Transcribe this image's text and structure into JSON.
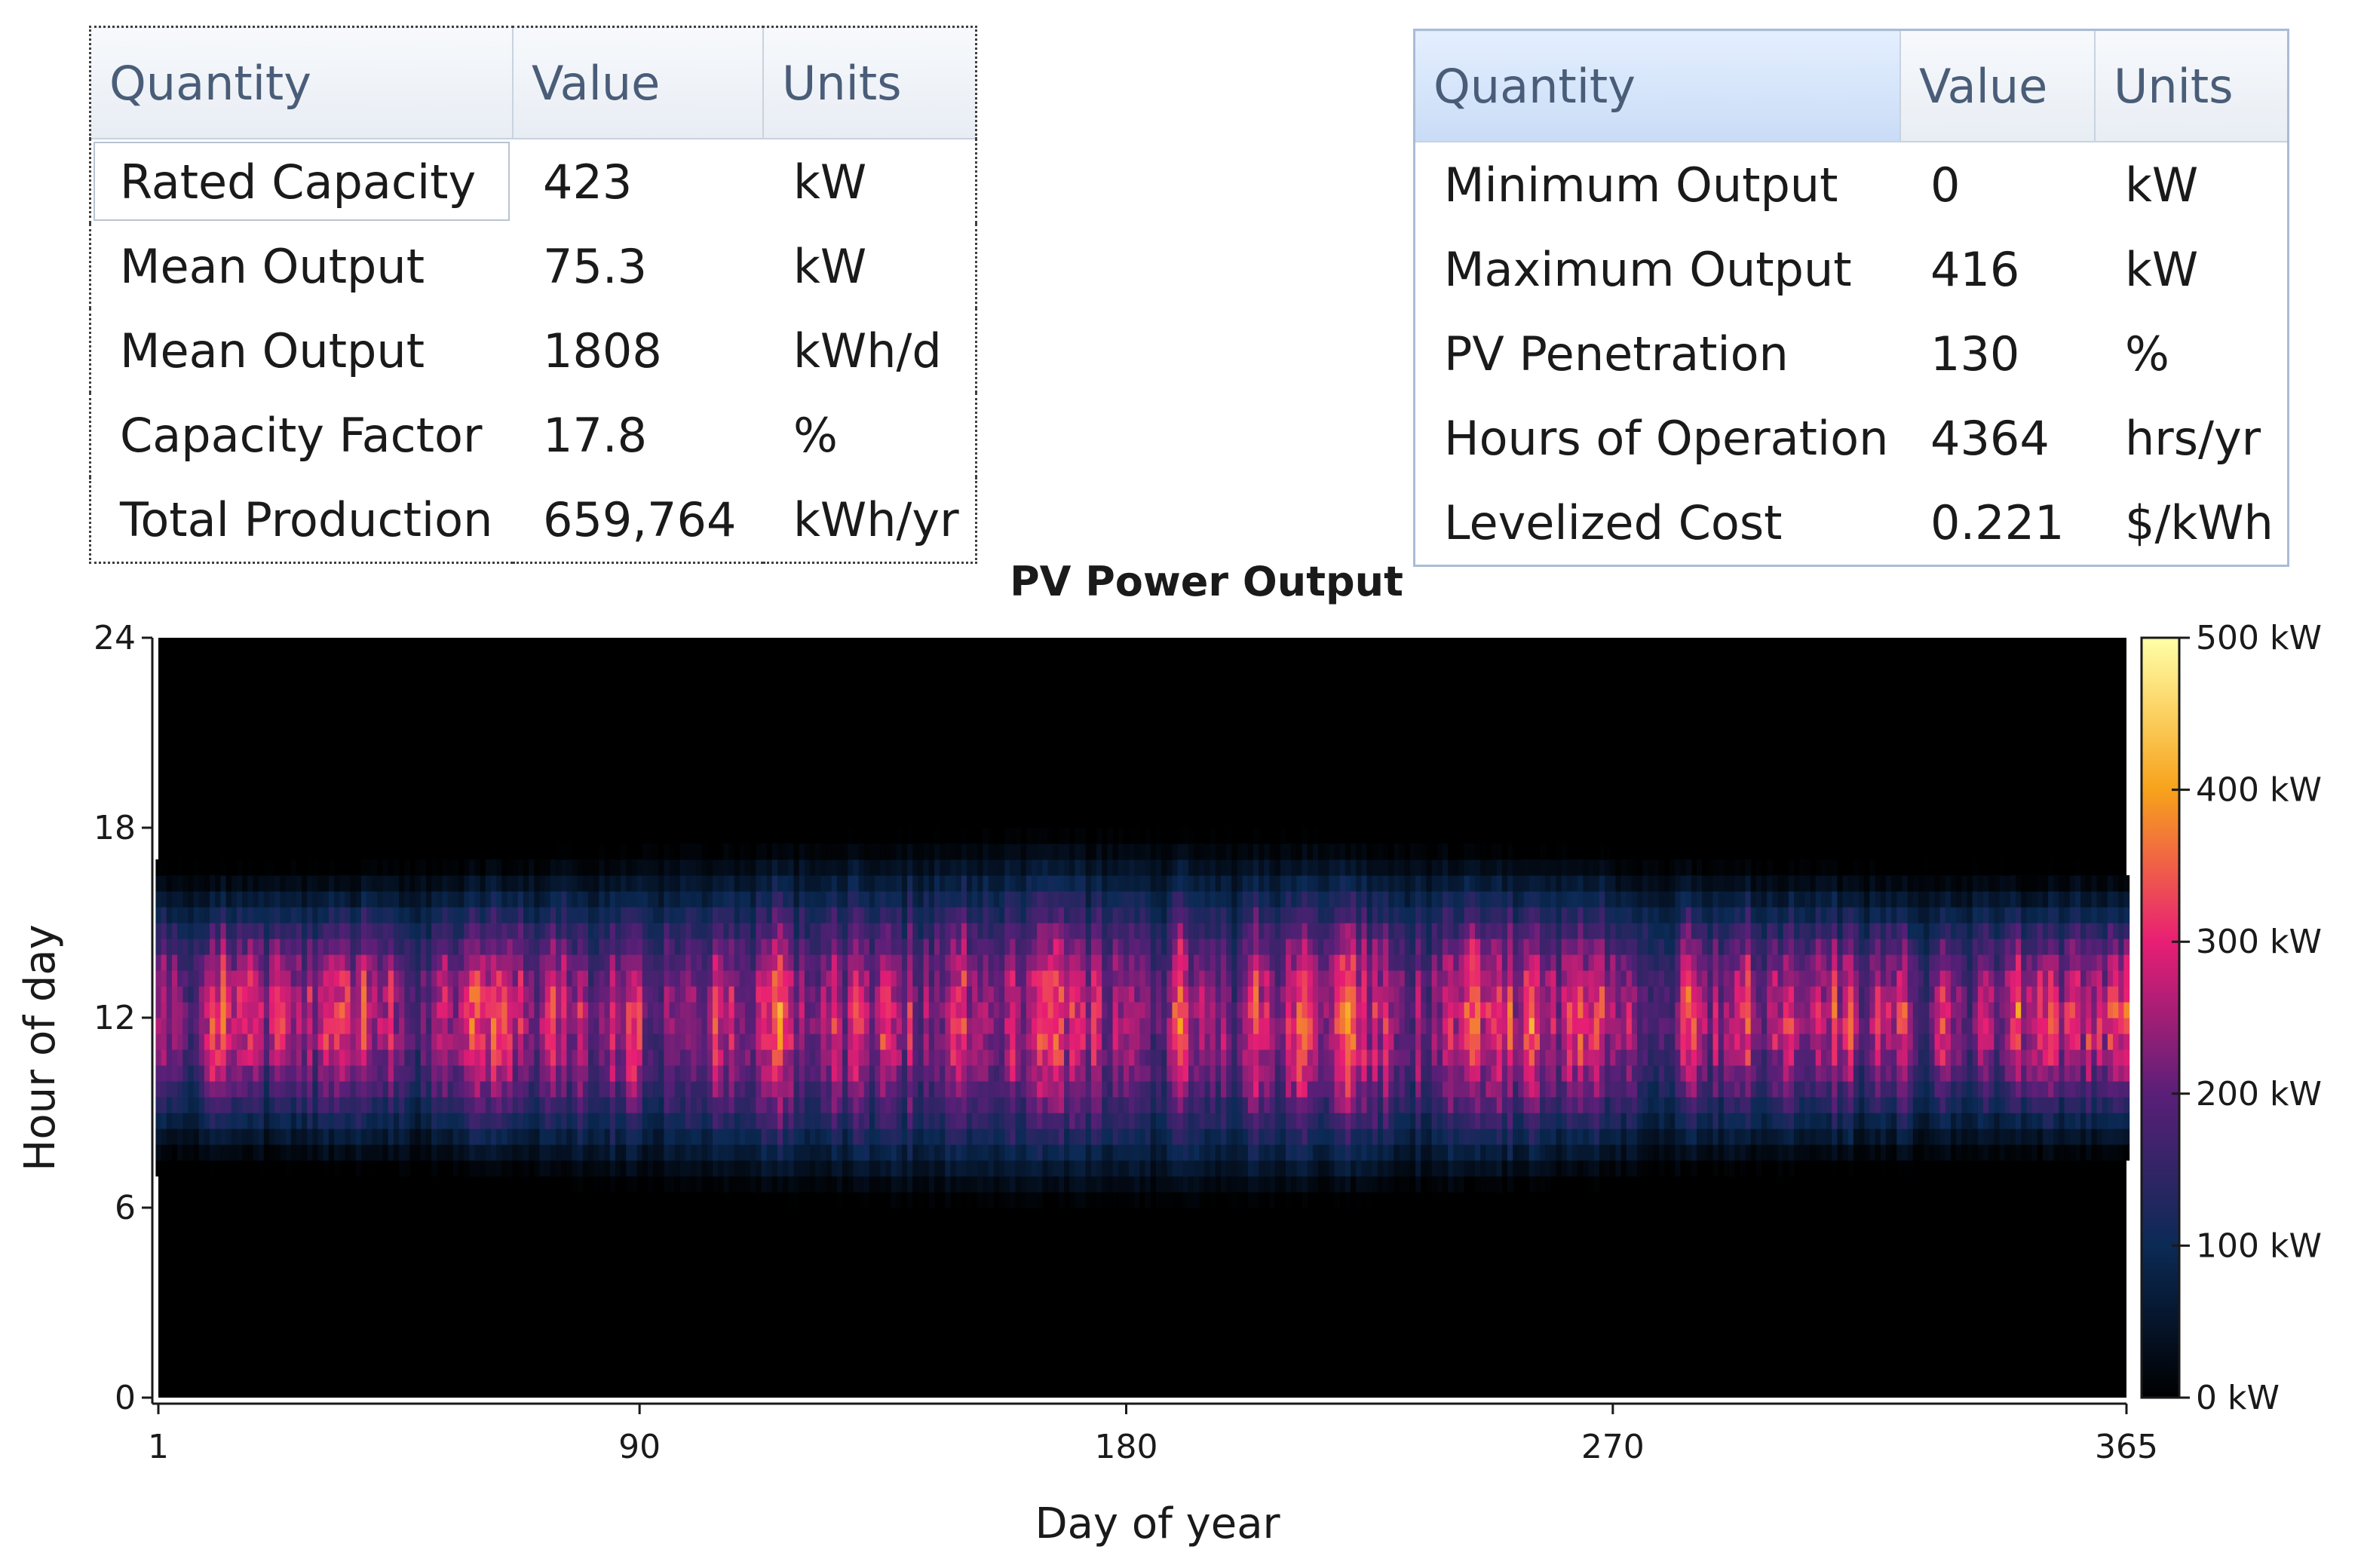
{
  "left_table": {
    "headers": [
      "Quantity",
      "Value",
      "Units"
    ],
    "rows": [
      [
        "Rated Capacity",
        "423",
        "kW"
      ],
      [
        "Mean Output",
        "75.3",
        "kW"
      ],
      [
        "Mean Output",
        "1808",
        "kWh/d"
      ],
      [
        "Capacity Factor",
        "17.8",
        "%"
      ],
      [
        "Total Production",
        "659,764",
        "kWh/yr"
      ]
    ]
  },
  "right_table": {
    "headers": [
      "Quantity",
      "Value",
      "Units"
    ],
    "rows": [
      [
        "Minimum Output",
        "0",
        "kW"
      ],
      [
        "Maximum Output",
        "416",
        "kW"
      ],
      [
        "PV Penetration",
        "130",
        "%"
      ],
      [
        "Hours of Operation",
        "4364",
        "hrs/yr"
      ],
      [
        "Levelized Cost",
        "0.221",
        "$/kWh"
      ]
    ]
  },
  "chart_data": {
    "type": "heatmap",
    "title": "PV Power Output",
    "xlabel": "Day of year",
    "ylabel": "Hour of day",
    "xlim": [
      1,
      365
    ],
    "ylim": [
      0,
      24
    ],
    "x_ticks": [
      "1",
      "90",
      "180",
      "270",
      "365"
    ],
    "y_ticks": [
      "0",
      "6",
      "12",
      "18",
      "24"
    ],
    "colorbar": {
      "min": 0,
      "max": 500,
      "ticks": [
        "0 kW",
        "100 kW",
        "200 kW",
        "300 kW",
        "400 kW",
        "500 kW"
      ],
      "colormap": "inferno-like",
      "stops": [
        "#000000",
        "#0b2a55",
        "#5a1f78",
        "#e81e74",
        "#f7a21b",
        "#ffffa8"
      ]
    },
    "daylight_window": {
      "sunrise_hour_range": [
        6,
        7.5
      ],
      "sunset_hour_range": [
        16.5,
        18
      ]
    },
    "peak_hour": 12,
    "max_value_kW": 416
  }
}
